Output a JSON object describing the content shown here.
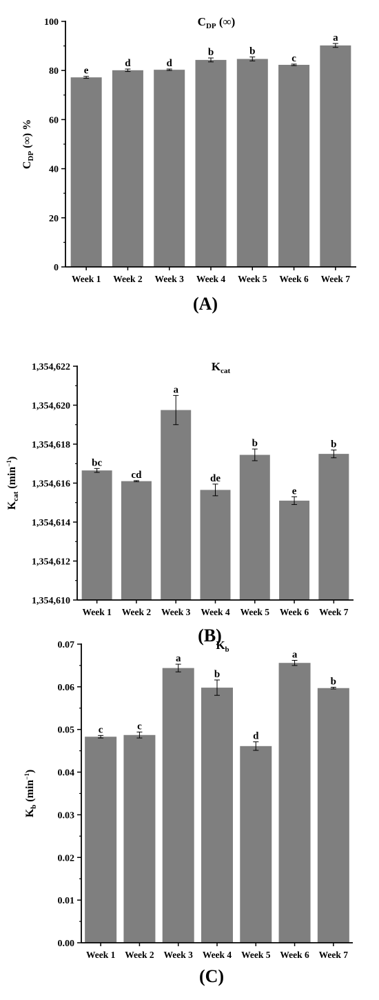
{
  "style": {
    "bar_color": "#7f7f7f",
    "axis_color": "#000000",
    "background": "#ffffff"
  },
  "chart_data": [
    {
      "type": "bar",
      "panel": "(A)",
      "title_main": "C",
      "title_sub": "DP",
      "title_tail": " (∞)",
      "ylabel_main": "C",
      "ylabel_sub": "DP",
      "ylabel_tail": " (∞) %",
      "categories": [
        "Week 1",
        "Week 2",
        "Week 3",
        "Week 4",
        "Week 5",
        "Week 6",
        "Week 7"
      ],
      "values": [
        77.2,
        80.1,
        80.3,
        84.3,
        84.7,
        82.3,
        90.2
      ],
      "errors": [
        0.4,
        0.5,
        0.3,
        0.8,
        0.8,
        0.3,
        0.8
      ],
      "letters": [
        "e",
        "d",
        "d",
        "b",
        "b",
        "c",
        "a"
      ],
      "ylim": [
        0,
        100
      ],
      "yticks": [
        0,
        20,
        40,
        60,
        80,
        100
      ],
      "ytick_labels": [
        "0",
        "20",
        "40",
        "60",
        "80",
        "100"
      ],
      "grid": false
    },
    {
      "type": "bar",
      "panel": "(B)",
      "title_main": "K",
      "title_sub": "cat",
      "title_tail": "",
      "ylabel_main": "K",
      "ylabel_sub": "cat",
      "ylabel_tail": " (min",
      "ylabel_sup": "−1",
      "ylabel_close": ")",
      "categories": [
        "Week 1",
        "Week 2",
        "Week 3",
        "Week 4",
        "Week 5",
        "Week 6",
        "Week 7"
      ],
      "values": [
        1354616.65,
        1354616.1,
        1354619.75,
        1354615.65,
        1354617.45,
        1354615.1,
        1354617.5
      ],
      "errors": [
        0.1,
        0.03,
        0.75,
        0.3,
        0.3,
        0.2,
        0.2
      ],
      "letters": [
        "bc",
        "cd",
        "a",
        "de",
        "b",
        "e",
        "b"
      ],
      "ylim": [
        1354610,
        1354622
      ],
      "yticks": [
        1354610,
        1354612,
        1354614,
        1354616,
        1354618,
        1354620,
        1354622
      ],
      "ytick_labels": [
        "1,354,610",
        "1,354,612",
        "1,354,614",
        "1,354,616",
        "1,354,618",
        "1,354,620",
        "1,354,622"
      ],
      "grid": false
    },
    {
      "type": "bar",
      "panel": "(C)",
      "title_main": "K",
      "title_sub": "b",
      "title_tail": "",
      "ylabel_main": "K",
      "ylabel_sub": "b",
      "ylabel_tail": " (min",
      "ylabel_sup": "−1",
      "ylabel_close": ")",
      "categories": [
        "Week 1",
        "Week 2",
        "Week 3",
        "Week 4",
        "Week 5",
        "Week 6",
        "Week 7"
      ],
      "values": [
        0.0483,
        0.0487,
        0.0644,
        0.0598,
        0.0461,
        0.0656,
        0.0597
      ],
      "errors": [
        0.0003,
        0.0007,
        0.0009,
        0.0018,
        0.001,
        0.0006,
        0.0002
      ],
      "letters": [
        "c",
        "c",
        "a",
        "b",
        "d",
        "a",
        "b"
      ],
      "ylim": [
        0,
        0.07
      ],
      "yticks": [
        0,
        0.01,
        0.02,
        0.03,
        0.04,
        0.05,
        0.06,
        0.07
      ],
      "ytick_labels": [
        "0.00",
        "0.01",
        "0.02",
        "0.03",
        "0.04",
        "0.05",
        "0.06",
        "0.07"
      ],
      "grid": false
    }
  ]
}
